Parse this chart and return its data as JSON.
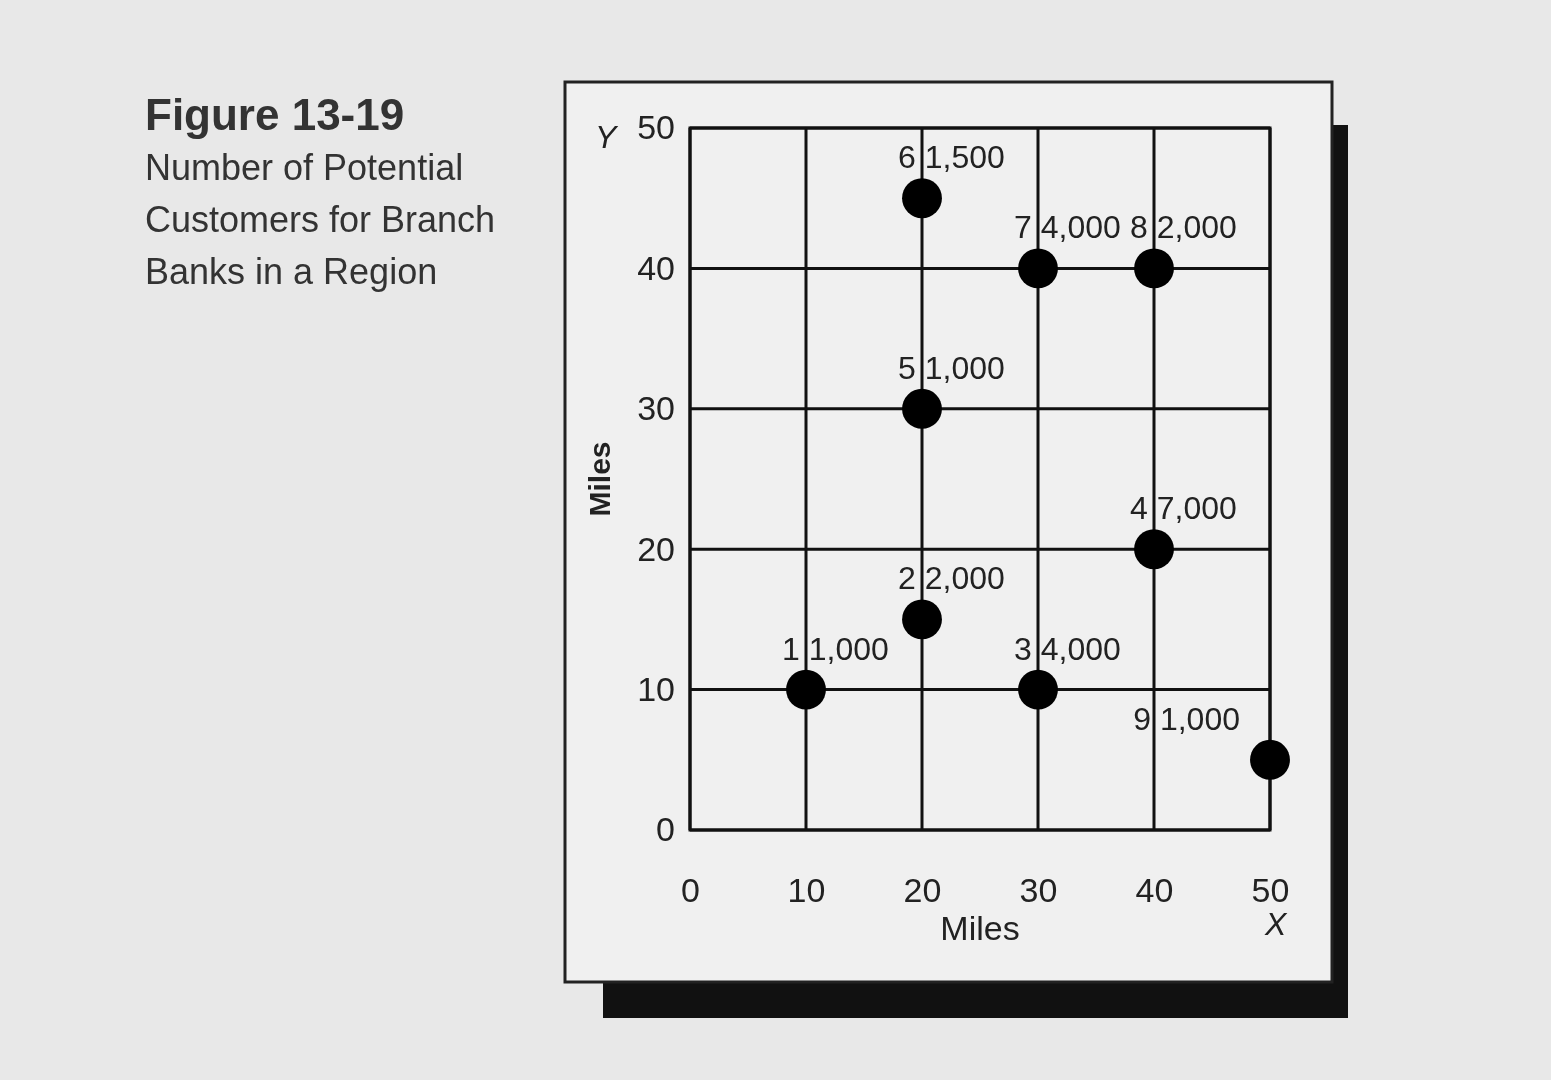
{
  "chart_data": {
    "type": "scatter",
    "title": "Figure 13-19",
    "subtitle": "Number of Potential Customers for Branch Banks in a Region",
    "xlabel": "Miles",
    "ylabel": "Miles",
    "x": [
      10,
      20,
      30,
      40,
      20,
      20,
      30,
      40,
      50
    ],
    "values": [
      10,
      15,
      10,
      20,
      30,
      45,
      40,
      40,
      5
    ],
    "color": "#000000",
    "marker": "circle",
    "grid": true,
    "xlim": [
      0,
      50
    ],
    "ylim": [
      0,
      50
    ],
    "xticks": [
      0,
      10,
      20,
      30,
      40,
      50
    ],
    "yticks": [
      0,
      10,
      20,
      30,
      40,
      50
    ],
    "annotations": [
      {
        "text": "1 1,000",
        "x": 10,
        "y": 10
      },
      {
        "text": "2 2,000",
        "x": 20,
        "y": 15
      },
      {
        "text": "3 4,000",
        "x": 30,
        "y": 10
      },
      {
        "text": "4 7,000",
        "x": 40,
        "y": 20
      },
      {
        "text": "5 1,000",
        "x": 20,
        "y": 30
      },
      {
        "text": "6 1,500",
        "x": 20,
        "y": 45
      },
      {
        "text": "7 4,000",
        "x": 30,
        "y": 40
      },
      {
        "text": "8 2,000",
        "x": 40,
        "y": 40
      },
      {
        "text": "9 1,000",
        "x": 50,
        "y": 5
      },
      "Y",
      "X"
    ]
  }
}
